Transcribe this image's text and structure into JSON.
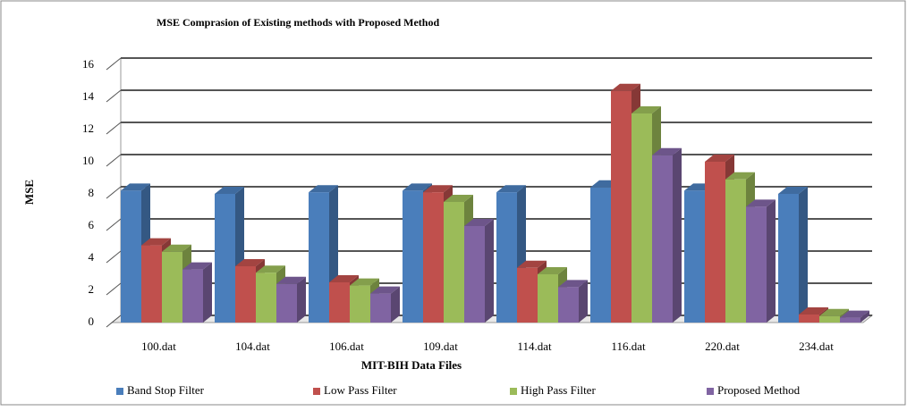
{
  "chart_data": {
    "type": "bar3d",
    "title": "MSE Comprasion of Existing methods with Proposed Method",
    "xlabel": "MIT-BIH Data Files",
    "ylabel": "MSE",
    "categories": [
      "100.dat",
      "104.dat",
      "106.dat",
      "109.dat",
      "114.dat",
      "116.dat",
      "220.dat",
      "234.dat"
    ],
    "series": [
      {
        "name": "Band Stop Filter",
        "color": "#4a7ebb",
        "values": [
          8.2,
          8.0,
          8.1,
          8.2,
          8.1,
          8.4,
          8.2,
          8.0
        ]
      },
      {
        "name": "Low Pass Filter",
        "color": "#c0504d",
        "values": [
          4.8,
          3.5,
          2.5,
          8.1,
          3.4,
          14.4,
          10.0,
          0.5
        ]
      },
      {
        "name": "High Pass Filter",
        "color": "#9bbb59",
        "values": [
          4.4,
          3.1,
          2.3,
          7.5,
          3.0,
          13.0,
          8.9,
          0.4
        ]
      },
      {
        "name": "Proposed Method",
        "color": "#8064a2",
        "values": [
          3.3,
          2.4,
          1.8,
          6.0,
          2.2,
          10.4,
          7.2,
          0.3
        ]
      }
    ],
    "ylim": [
      0,
      16
    ],
    "yticks": [
      0,
      2,
      4,
      6,
      8,
      10,
      12,
      14,
      16
    ],
    "grid": true,
    "legend": "bottom"
  }
}
